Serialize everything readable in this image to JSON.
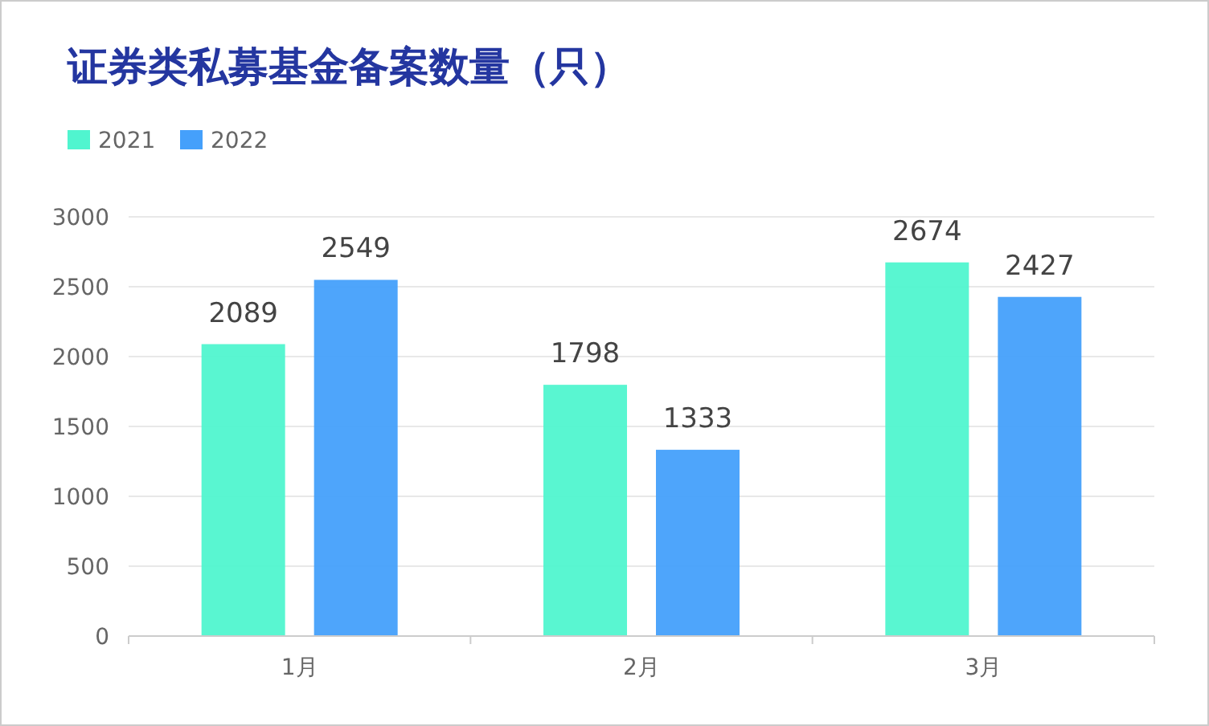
{
  "chart_data": {
    "type": "bar",
    "title": "证券类私募基金备案数量（只）",
    "categories": [
      "1月",
      "2月",
      "3月"
    ],
    "series": [
      {
        "name": "2021",
        "color": "#50f5cf",
        "values": [
          2089,
          1798,
          2674
        ]
      },
      {
        "name": "2022",
        "color": "#45a0fb",
        "values": [
          2549,
          1333,
          2427
        ]
      }
    ],
    "ylim": [
      0,
      3000
    ],
    "yticks": [
      0,
      500,
      1000,
      1500,
      2000,
      2500,
      3000
    ],
    "grid": "y",
    "legend": "top left",
    "data_labels": true
  }
}
